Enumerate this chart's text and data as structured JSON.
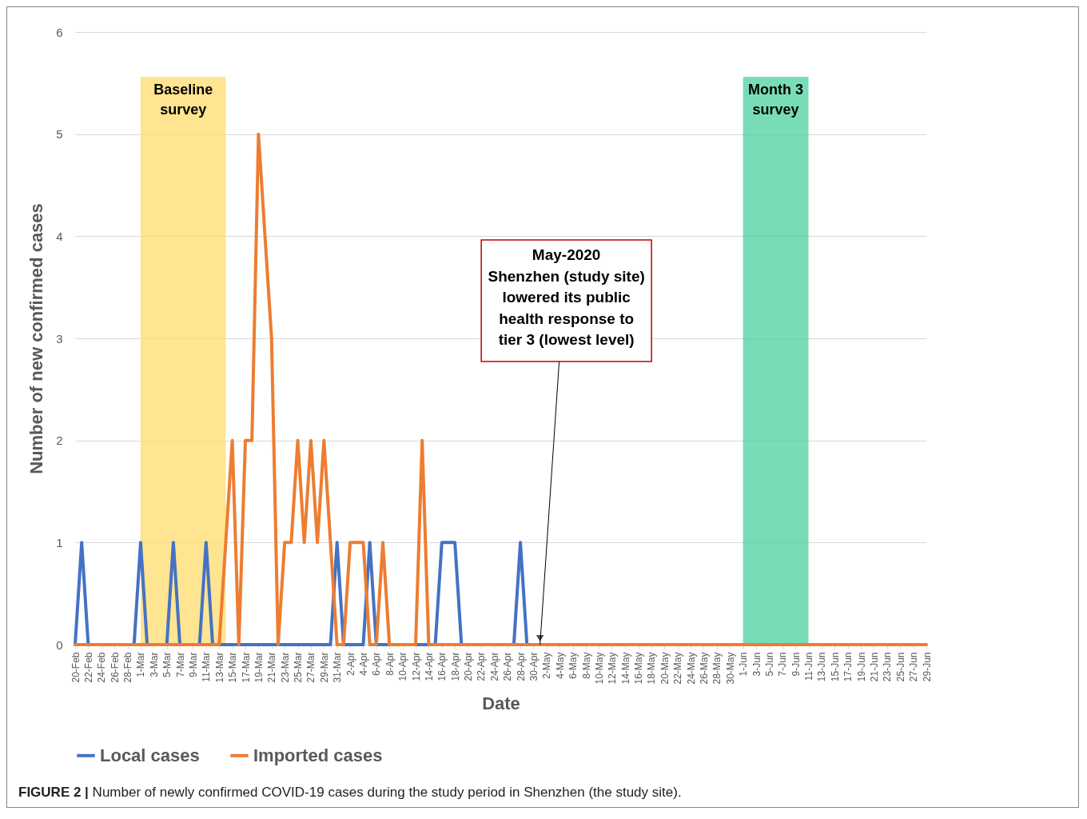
{
  "chart_data": {
    "type": "line",
    "xlabel": "Date",
    "ylabel": "Number of new confirmed cases",
    "x": [
      "--02-20",
      "--02-21",
      "--02-22",
      "--02-23",
      "--02-24",
      "--02-25",
      "--02-26",
      "--02-27",
      "--02-28",
      "--02-29",
      "--03-01",
      "--03-02",
      "--03-03",
      "--03-04",
      "--03-05",
      "--03-06",
      "--03-07",
      "--03-08",
      "--03-09",
      "--03-10",
      "--03-11",
      "--03-12",
      "--03-13",
      "--03-14",
      "--03-15",
      "--03-16",
      "--03-17",
      "--03-18",
      "--03-19",
      "--03-20",
      "--03-21",
      "--03-22",
      "--03-23",
      "--03-24",
      "--03-25",
      "--03-26",
      "--03-27",
      "--03-28",
      "--03-29",
      "--03-30",
      "--03-31",
      "--04-01",
      "--04-02",
      "--04-03",
      "--04-04",
      "--04-05",
      "--04-06",
      "--04-07",
      "--04-08",
      "--04-09",
      "--04-10",
      "--04-11",
      "--04-12",
      "--04-13",
      "--04-14",
      "--04-15",
      "--04-16",
      "--04-17",
      "--04-18",
      "--04-19",
      "--04-20",
      "--04-21",
      "--04-22",
      "--04-23",
      "--04-24",
      "--04-25",
      "--04-26",
      "--04-27",
      "--04-28",
      "--04-29",
      "--04-30",
      "--05-01",
      "--05-02",
      "--05-03",
      "--05-04",
      "--05-05",
      "--05-06",
      "--05-07",
      "--05-08",
      "--05-09",
      "--05-10",
      "--05-11",
      "--05-12",
      "--05-13",
      "--05-14",
      "--05-15",
      "--05-16",
      "--05-17",
      "--05-18",
      "--05-19",
      "--05-20",
      "--05-21",
      "--05-22",
      "--05-23",
      "--05-24",
      "--05-25",
      "--05-26",
      "--05-27",
      "--05-28",
      "--05-29",
      "--05-30",
      "--05-31",
      "--06-01",
      "--06-02",
      "--06-03",
      "--06-04",
      "--06-05",
      "--06-06",
      "--06-07",
      "--06-08",
      "--06-09",
      "--06-10",
      "--06-11",
      "--06-12",
      "--06-13",
      "--06-14",
      "--06-15",
      "--06-16",
      "--06-17",
      "--06-18",
      "--06-19",
      "--06-20",
      "--06-21",
      "--06-22",
      "--06-23",
      "--06-24",
      "--06-25",
      "--06-26",
      "--06-27",
      "--06-28",
      "--06-29"
    ],
    "series": [
      {
        "name": "Local cases",
        "color": "#4472c4",
        "values": [
          0,
          1,
          0,
          0,
          null,
          null,
          null,
          null,
          0,
          0,
          1,
          0,
          null,
          null,
          0,
          1,
          0,
          null,
          null,
          0,
          1,
          0,
          0,
          0,
          0,
          0,
          0,
          0,
          0,
          0,
          0,
          0,
          0,
          0,
          0,
          0,
          0,
          0,
          0,
          0,
          1,
          0,
          0,
          0,
          0,
          1,
          0,
          0,
          0,
          null,
          null,
          null,
          0,
          0,
          0,
          0,
          1,
          1,
          1,
          0,
          0,
          null,
          null,
          null,
          null,
          null,
          null,
          0,
          1,
          0,
          0,
          null,
          null,
          null,
          null,
          null,
          null,
          null,
          null,
          null,
          null,
          null,
          null,
          null,
          null,
          null,
          null,
          null,
          null,
          null,
          null,
          null,
          null,
          null,
          null,
          null,
          null,
          null,
          null,
          null,
          null,
          null,
          null,
          null,
          null,
          null,
          null,
          null,
          null,
          null,
          null,
          null,
          null,
          null,
          null,
          null,
          null,
          null,
          null,
          null,
          null,
          null,
          null,
          null,
          null,
          null,
          null,
          null,
          null,
          null,
          null
        ]
      },
      {
        "name": "Imported cases",
        "color": "#ed7d31",
        "values": [
          0,
          0,
          0,
          0,
          0,
          0,
          0,
          0,
          0,
          0,
          0,
          0,
          0,
          0,
          0,
          0,
          0,
          0,
          0,
          0,
          0,
          0,
          0,
          1,
          2,
          0,
          2,
          2,
          5,
          4,
          3,
          0,
          1,
          1,
          2,
          1,
          2,
          1,
          2,
          1,
          0,
          0,
          1,
          1,
          1,
          0,
          0,
          1,
          0,
          0,
          0,
          0,
          0,
          2,
          0,
          0,
          0,
          0,
          0,
          0,
          0,
          0,
          0,
          0,
          0,
          0,
          0,
          0,
          0,
          0,
          0,
          0,
          0,
          0,
          0,
          0,
          0,
          0,
          0,
          0,
          0,
          0,
          0,
          0,
          0,
          0,
          0,
          0,
          0,
          0,
          0,
          0,
          0,
          0,
          0,
          0,
          0,
          0,
          0,
          0,
          0,
          0,
          0,
          0,
          0,
          0,
          0,
          0,
          0,
          0,
          0,
          0,
          0,
          0,
          0,
          0,
          0,
          0,
          0,
          0,
          0,
          0,
          0,
          0,
          0,
          0,
          0,
          0,
          0,
          0,
          0
        ]
      }
    ],
    "xlim": [
      "--02-20",
      "--06-29"
    ],
    "xticks": [
      {
        "value": "--02-20",
        "label": "20-Feb"
      },
      {
        "value": "--02-22",
        "label": "22-Feb"
      },
      {
        "value": "--02-24",
        "label": "24-Feb"
      },
      {
        "value": "--02-26",
        "label": "26-Feb"
      },
      {
        "value": "--02-28",
        "label": "28-Feb"
      },
      {
        "value": "--03-01",
        "label": "1-Mar"
      },
      {
        "value": "--03-03",
        "label": "3-Mar"
      },
      {
        "value": "--03-05",
        "label": "5-Mar"
      },
      {
        "value": "--03-07",
        "label": "7-Mar"
      },
      {
        "value": "--03-09",
        "label": "9-Mar"
      },
      {
        "value": "--03-11",
        "label": "11-Mar"
      },
      {
        "value": "--03-13",
        "label": "13-Mar"
      },
      {
        "value": "--03-15",
        "label": "15-Mar"
      },
      {
        "value": "--03-17",
        "label": "17-Mar"
      },
      {
        "value": "--03-19",
        "label": "19-Mar"
      },
      {
        "value": "--03-21",
        "label": "21-Mar"
      },
      {
        "value": "--03-23",
        "label": "23-Mar"
      },
      {
        "value": "--03-25",
        "label": "25-Mar"
      },
      {
        "value": "--03-27",
        "label": "27-Mar"
      },
      {
        "value": "--03-29",
        "label": "29-Mar"
      },
      {
        "value": "--03-31",
        "label": "31-Mar"
      },
      {
        "value": "--04-02",
        "label": "2-Apr"
      },
      {
        "value": "--04-04",
        "label": "4-Apr"
      },
      {
        "value": "--04-06",
        "label": "6-Apr"
      },
      {
        "value": "--04-08",
        "label": "8-Apr"
      },
      {
        "value": "--04-10",
        "label": "10-Apr"
      },
      {
        "value": "--04-12",
        "label": "12-Apr"
      },
      {
        "value": "--04-14",
        "label": "14-Apr"
      },
      {
        "value": "--04-16",
        "label": "16-Apr"
      },
      {
        "value": "--04-18",
        "label": "18-Apr"
      },
      {
        "value": "--04-20",
        "label": "20-Apr"
      },
      {
        "value": "--04-22",
        "label": "22-Apr"
      },
      {
        "value": "--04-24",
        "label": "24-Apr"
      },
      {
        "value": "--04-26",
        "label": "26-Apr"
      },
      {
        "value": "--04-28",
        "label": "28-Apr"
      },
      {
        "value": "--04-30",
        "label": "30-Apr"
      },
      {
        "value": "--05-02",
        "label": "2-May"
      },
      {
        "value": "--05-04",
        "label": "4-May"
      },
      {
        "value": "--05-06",
        "label": "6-May"
      },
      {
        "value": "--05-08",
        "label": "8-May"
      },
      {
        "value": "--05-10",
        "label": "10-May"
      },
      {
        "value": "--05-12",
        "label": "12-May"
      },
      {
        "value": "--05-14",
        "label": "14-May"
      },
      {
        "value": "--05-16",
        "label": "16-May"
      },
      {
        "value": "--05-18",
        "label": "18-May"
      },
      {
        "value": "--05-20",
        "label": "20-May"
      },
      {
        "value": "--05-22",
        "label": "22-May"
      },
      {
        "value": "--05-24",
        "label": "24-May"
      },
      {
        "value": "--05-26",
        "label": "26-May"
      },
      {
        "value": "--05-28",
        "label": "28-May"
      },
      {
        "value": "--05-30",
        "label": "30-May"
      },
      {
        "value": "--06-01",
        "label": "1-Jun"
      },
      {
        "value": "--06-03",
        "label": "3-Jun"
      },
      {
        "value": "--06-05",
        "label": "5-Jun"
      },
      {
        "value": "--06-07",
        "label": "7-Jun"
      },
      {
        "value": "--06-09",
        "label": "9-Jun"
      },
      {
        "value": "--06-11",
        "label": "11-Jun"
      },
      {
        "value": "--06-13",
        "label": "13-Jun"
      },
      {
        "value": "--06-15",
        "label": "15-Jun"
      },
      {
        "value": "--06-17",
        "label": "17-Jun"
      },
      {
        "value": "--06-19",
        "label": "19-Jun"
      },
      {
        "value": "--06-21",
        "label": "21-Jun"
      },
      {
        "value": "--06-23",
        "label": "23-Jun"
      },
      {
        "value": "--06-25",
        "label": "25-Jun"
      },
      {
        "value": "--06-27",
        "label": "27-Jun"
      },
      {
        "value": "--06-29",
        "label": "29-Jun"
      }
    ],
    "ylim": [
      0,
      6
    ],
    "yticks": [
      0,
      1,
      2,
      3,
      4,
      5,
      6
    ],
    "grid": "y",
    "legend": "bottom",
    "bands": [
      {
        "axis": "x",
        "from": "--03-01",
        "to": "--03-14",
        "label": "Baseline\nsurvey",
        "color": "#ffd966"
      },
      {
        "axis": "x",
        "from": "--06-01",
        "to": "--06-11",
        "label": "Month 3\nsurvey",
        "color": "#44d09b"
      }
    ],
    "annotations": [
      {
        "text": "May-2020\nShenzhen (study site)\nlowered its public\nhealth response to\ntier 3 (lowest level)",
        "x": "--05-01",
        "y": 0
      },
      "FIGURE 2 | Number of newly confirmed COVID-19 cases during the study period in Shenzhen (the study site)."
    ]
  }
}
